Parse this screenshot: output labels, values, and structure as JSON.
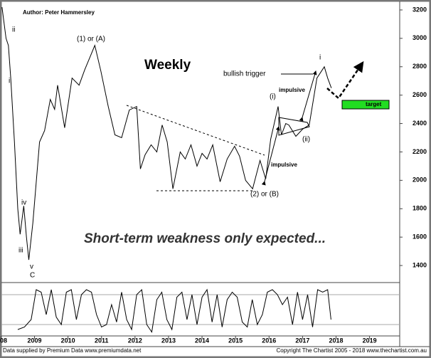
{
  "chart_data": [
    {
      "type": "line",
      "author": "Author: Peter Hammersley",
      "title": "Weekly",
      "subtitle": "Short-term weakness only expected...",
      "x": [
        2008.03,
        2008.15,
        2008.22,
        2008.29,
        2008.4,
        2008.5,
        2008.57,
        2008.68,
        2008.76,
        2008.83,
        2008.95,
        2009.15,
        2009.3,
        2009.47,
        2009.6,
        2009.69,
        2009.9,
        2010.12,
        2010.33,
        2010.5,
        2010.66,
        2010.8,
        2010.98,
        2011.2,
        2011.4,
        2011.6,
        2011.83,
        2012.05,
        2012.16,
        2012.3,
        2012.48,
        2012.65,
        2012.81,
        2012.96,
        2013.13,
        2013.35,
        2013.5,
        2013.67,
        2013.85,
        2014.0,
        2014.15,
        2014.32,
        2014.54,
        2014.75,
        2014.97,
        2015.12,
        2015.3,
        2015.51,
        2015.73,
        2015.9,
        2016.05,
        2016.27,
        2016.37,
        2016.5,
        2016.59,
        2016.8,
        2017.0,
        2017.2,
        2017.43,
        2017.65,
        2017.75,
        2017.86
      ],
      "values": [
        3220,
        3000,
        2950,
        2720,
        2270,
        1800,
        1620,
        1820,
        1600,
        1440,
        1700,
        2270,
        2350,
        2570,
        2500,
        2670,
        2370,
        2720,
        2670,
        2780,
        2870,
        2950,
        2770,
        2520,
        2320,
        2300,
        2495,
        2520,
        2080,
        2180,
        2250,
        2200,
        2390,
        2270,
        1940,
        2200,
        2150,
        2250,
        2100,
        2190,
        2150,
        2250,
        1990,
        2150,
        2240,
        2170,
        2000,
        1940,
        2140,
        2010,
        2290,
        2520,
        2320,
        2400,
        2390,
        2310,
        2360,
        2390,
        2720,
        2800,
        2720,
        2650
      ],
      "color": "#000000",
      "xlim": [
        2007.97,
        2019.9
      ],
      "xticks": [
        {
          "value": 2008,
          "label": "08"
        },
        2009,
        2010,
        2011,
        2012,
        2013,
        2014,
        2015,
        2016,
        2017,
        2018,
        2019
      ],
      "ylim": [
        1300,
        3250
      ],
      "yticks": [
        1400,
        1600,
        1800,
        2000,
        2200,
        2400,
        2600,
        2800,
        3000,
        3200
      ],
      "annotations": [
        "(1) or (A)",
        "bullish trigger",
        "(i)",
        "impulsive",
        "impulsive",
        "(ii)",
        "i",
        "target",
        "(2) or (B)",
        "ii",
        "i",
        "iv",
        "iii",
        "v",
        "C"
      ],
      "footer_left": "Data supplied by Premium Data www.premiumdata.net",
      "footer_right": "Copyright The Chartist 2005 - 2018 www.thechartist.com.au"
    },
    {
      "type": "line",
      "color": "#000000",
      "ylim": [
        0,
        100
      ],
      "levels": [
        80,
        20
      ],
      "x": [
        2008.5,
        2008.7,
        2008.9,
        2009.05,
        2009.2,
        2009.35,
        2009.5,
        2009.65,
        2009.8,
        2009.95,
        2010.1,
        2010.25,
        2010.4,
        2010.55,
        2010.7,
        2010.85,
        2011.0,
        2011.15,
        2011.3,
        2011.45,
        2011.6,
        2011.75,
        2011.9,
        2012.05,
        2012.2,
        2012.35,
        2012.5,
        2012.65,
        2012.8,
        2012.95,
        2013.1,
        2013.25,
        2013.4,
        2013.55,
        2013.7,
        2013.85,
        2014.0,
        2014.15,
        2014.3,
        2014.45,
        2014.6,
        2014.75,
        2014.9,
        2015.05,
        2015.2,
        2015.35,
        2015.5,
        2015.65,
        2015.8,
        2015.95,
        2016.1,
        2016.25,
        2016.4,
        2016.55,
        2016.7,
        2016.85,
        2017.0,
        2017.15,
        2017.3,
        2017.45,
        2017.6,
        2017.75,
        2017.85
      ],
      "values": [
        10,
        15,
        30,
        90,
        85,
        40,
        90,
        35,
        20,
        85,
        90,
        30,
        80,
        90,
        85,
        40,
        15,
        20,
        60,
        25,
        85,
        30,
        10,
        80,
        90,
        20,
        5,
        70,
        85,
        30,
        10,
        75,
        85,
        30,
        80,
        20,
        75,
        90,
        25,
        80,
        15,
        70,
        85,
        75,
        25,
        15,
        70,
        20,
        40,
        85,
        90,
        80,
        60,
        75,
        20,
        85,
        30,
        80,
        15,
        90,
        85,
        90,
        30
      ]
    }
  ]
}
